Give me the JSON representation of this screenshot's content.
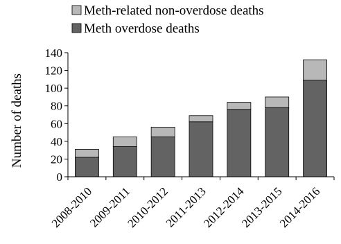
{
  "chart_data": {
    "type": "bar",
    "stacked": true,
    "categories": [
      "2008-2010",
      "2009-2011",
      "2010-2012",
      "2011-2013",
      "2012-2014",
      "2013-2015",
      "2014-2016"
    ],
    "series": [
      {
        "name": "Meth overdose deaths",
        "color": "#636363",
        "values": [
          22,
          34,
          45,
          62,
          76,
          78,
          109
        ]
      },
      {
        "name": "Meth-related non-overdose deaths",
        "color": "#b8b8b8",
        "values": [
          9,
          11,
          11,
          7,
          8,
          12,
          23
        ]
      }
    ],
    "legend_order": [
      1,
      0
    ],
    "legend_position": "top",
    "ylabel": "Number of deaths",
    "xlabel": "",
    "ylim": [
      0,
      140
    ],
    "yticks": [
      0,
      20,
      40,
      60,
      80,
      100,
      120,
      140
    ],
    "grid": false
  }
}
